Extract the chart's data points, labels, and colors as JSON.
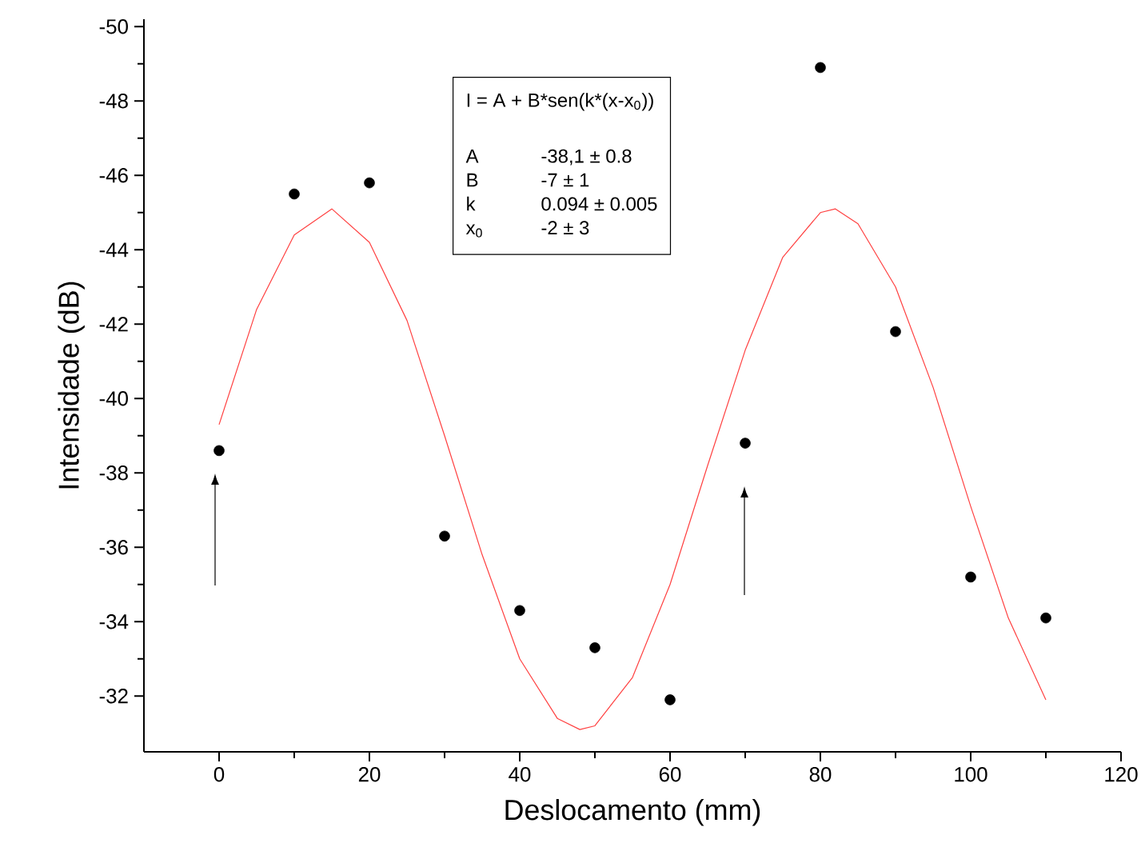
{
  "chart_data": {
    "type": "scatter",
    "xlabel": "Deslocamento (mm)",
    "ylabel": "Intensidade (dB)",
    "xlim": [
      -10,
      120
    ],
    "ylim": [
      -30.5,
      -50.2
    ],
    "xticks": [
      0,
      20,
      40,
      60,
      80,
      100,
      120
    ],
    "yticks": [
      -32,
      -34,
      -36,
      -38,
      -40,
      -42,
      -44,
      -46,
      -48,
      -50
    ],
    "grid": false,
    "marker": "circle",
    "series": [
      {
        "color": "#000000",
        "x": [
          0,
          10,
          20,
          30,
          40,
          50,
          60,
          70,
          80,
          90,
          100,
          110
        ],
        "values": [
          -38.6,
          -45.5,
          -45.8,
          -36.3,
          -34.3,
          -33.3,
          -31.9,
          -38.8,
          -48.9,
          -41.8,
          -35.2,
          -34.1
        ]
      },
      {
        "type": "line",
        "color": "#ff4040",
        "marker": "none",
        "line_style": "solid",
        "x": [
          0,
          5,
          10,
          15,
          20,
          25,
          30,
          35,
          40,
          45,
          48,
          50,
          55,
          60,
          65,
          70,
          75,
          80,
          82,
          85,
          90,
          95,
          100,
          105,
          110
        ],
        "values": [
          -39.3,
          -42.4,
          -44.4,
          -45.1,
          -44.2,
          -42.1,
          -39.0,
          -35.8,
          -33.0,
          -31.4,
          -31.1,
          -31.2,
          -32.5,
          -35.0,
          -38.2,
          -41.3,
          -43.8,
          -45.0,
          -45.1,
          -44.7,
          -43.0,
          -40.3,
          -37.1,
          -34.1,
          -31.9
        ]
      }
    ],
    "annotations": [
      "I = A + B*sen(k*(x-x$_{0}$))",
      "A",
      "-38,1 ±  0.8",
      "B",
      "-7 ± 1",
      "k",
      "0.094 ± 0.005",
      "x$_{0}$",
      "-2 ± 3"
    ]
  }
}
